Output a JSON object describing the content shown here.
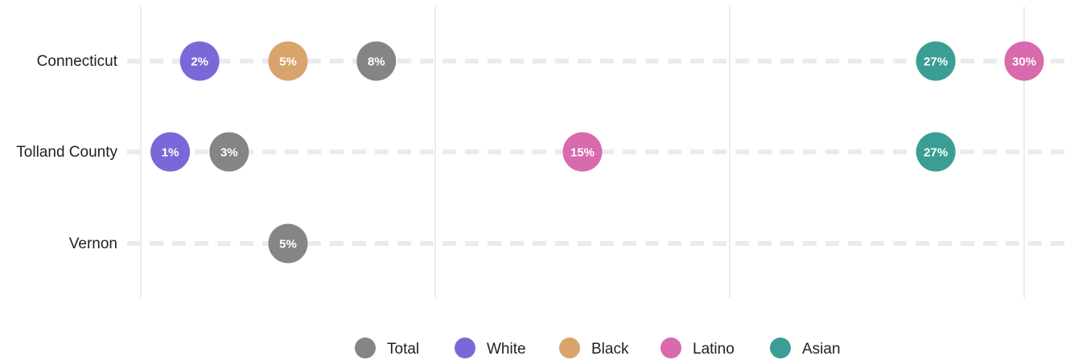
{
  "chart_data": {
    "type": "scatter",
    "categories": [
      "Connecticut",
      "Tolland County",
      "Vernon"
    ],
    "x_range": [
      0,
      30
    ],
    "x_gridlines": [
      0,
      10,
      20,
      30
    ],
    "series": [
      {
        "name": "Total",
        "color": "#858585",
        "values": [
          8,
          3,
          5
        ]
      },
      {
        "name": "White",
        "color": "#7b68d8",
        "values": [
          2,
          1,
          null
        ]
      },
      {
        "name": "Black",
        "color": "#d8a46b",
        "values": [
          5,
          null,
          null
        ]
      },
      {
        "name": "Latino",
        "color": "#d96aae",
        "values": [
          30,
          15,
          null
        ]
      },
      {
        "name": "Asian",
        "color": "#3a9e95",
        "values": [
          27,
          27,
          null
        ]
      }
    ],
    "value_suffix": "%",
    "legend_position": "bottom"
  }
}
